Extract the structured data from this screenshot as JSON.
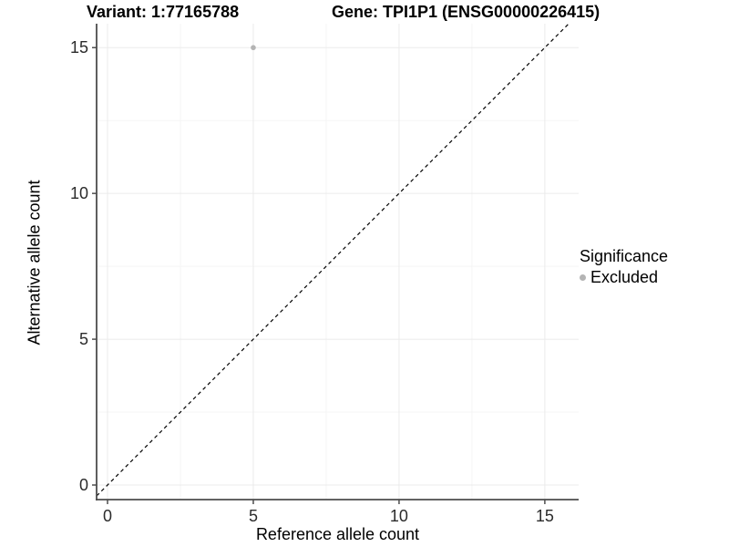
{
  "chart_data": {
    "type": "scatter",
    "title_left": "Variant: 1:77165788",
    "title_right": "Gene: TPI1P1 (ENSG00000226415)",
    "xlabel": "Reference allele count",
    "ylabel": "Alternative allele count",
    "xlim": [
      -0.375,
      16.16
    ],
    "ylim": [
      -0.5,
      15.82
    ],
    "x_ticks": [
      0,
      5,
      10,
      15
    ],
    "y_ticks": [
      0,
      5,
      10,
      15
    ],
    "x_minor": [
      2.5,
      7.5,
      12.5
    ],
    "y_minor": [
      2.5,
      7.5,
      12.5
    ],
    "points": [
      {
        "x": 5,
        "y": 15,
        "significance": "Excluded"
      }
    ],
    "identity_line": {
      "slope": 1,
      "intercept": 0,
      "style": "dashed",
      "color": "#000000"
    },
    "legend": {
      "position": "right",
      "title": "Significance",
      "entries": [
        {
          "label": "Excluded",
          "color": "#b4b4b4"
        }
      ]
    },
    "colors": {
      "background": "#ffffff",
      "grid_major": "#ebebeb",
      "grid_minor": "#f5f5f5",
      "axis_line": "#4d4d4d",
      "tick_label": "#2b2b2b",
      "point": "#b4b4b4"
    }
  }
}
